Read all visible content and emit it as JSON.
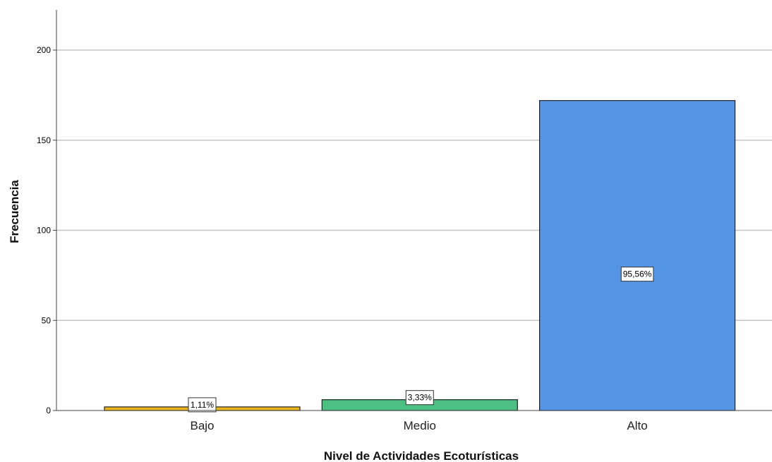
{
  "chart_data": {
    "type": "bar",
    "categories": [
      "Bajo",
      "Medio",
      "Alto"
    ],
    "values": [
      2,
      6,
      172
    ],
    "data_labels": [
      "1,11%",
      "3,33%",
      "95,56%"
    ],
    "colors": [
      "#E9B41C",
      "#4CC083",
      "#5595E5"
    ],
    "xlabel": "Nivel de Actividades Ecoturísticas",
    "ylabel": "Frecuencia",
    "ylim": [
      0,
      222
    ],
    "yticks": [
      0,
      50,
      100,
      150,
      200
    ],
    "ytick_labels": [
      "0",
      "50",
      "100",
      "150",
      "200"
    ],
    "grid": true,
    "legend": "none"
  }
}
